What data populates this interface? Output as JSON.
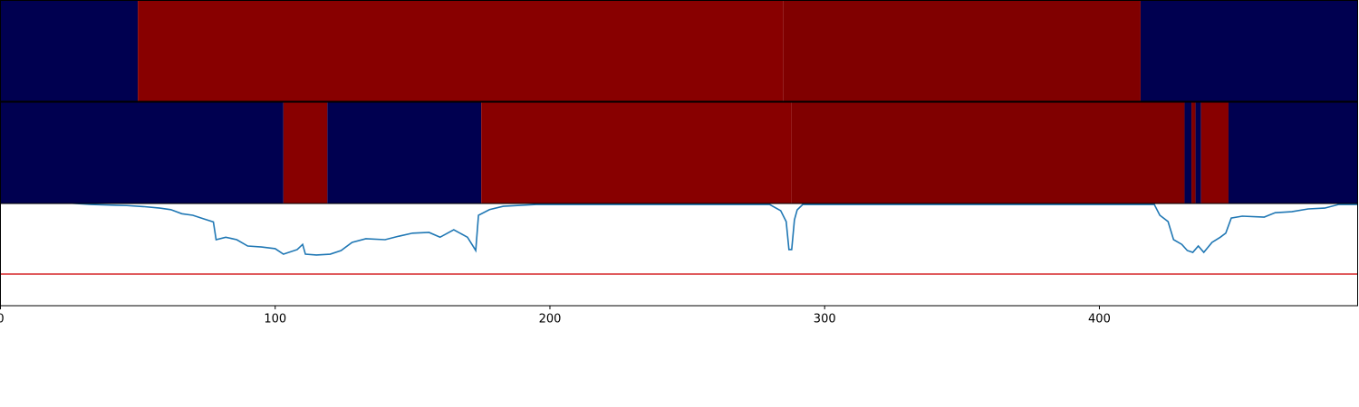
{
  "chart_data": [
    {
      "type": "heatmap",
      "xlim": [
        0,
        494
      ],
      "segments": [
        {
          "start": 0,
          "end": 50,
          "color": "#000050"
        },
        {
          "start": 50,
          "end": 285,
          "color": "#880000"
        },
        {
          "start": 285,
          "end": 415,
          "color": "#800000"
        },
        {
          "start": 415,
          "end": 494,
          "color": "#000050"
        }
      ]
    },
    {
      "type": "heatmap",
      "xlim": [
        0,
        494
      ],
      "segments": [
        {
          "start": 0,
          "end": 103,
          "color": "#000050"
        },
        {
          "start": 103,
          "end": 119,
          "color": "#880000"
        },
        {
          "start": 119,
          "end": 175,
          "color": "#000050"
        },
        {
          "start": 175,
          "end": 288,
          "color": "#880000"
        },
        {
          "start": 288,
          "end": 431,
          "color": "#800000"
        },
        {
          "start": 431,
          "end": 433.5,
          "color": "#000050"
        },
        {
          "start": 433.5,
          "end": 435,
          "color": "#800000"
        },
        {
          "start": 435,
          "end": 437,
          "color": "#000050"
        },
        {
          "start": 437,
          "end": 447,
          "color": "#880000"
        },
        {
          "start": 447,
          "end": 494,
          "color": "#000050"
        }
      ]
    },
    {
      "type": "line",
      "xlim": [
        0,
        494
      ],
      "ylim": [
        0,
        1
      ],
      "color": "#1f77b4",
      "xticks": [
        0,
        100,
        200,
        300,
        400
      ],
      "hline": {
        "value": 0.31,
        "color": "#d62728"
      },
      "x": [
        0,
        33,
        46,
        52,
        58,
        62,
        66,
        70,
        74,
        77.5,
        78.5,
        82,
        86,
        90,
        95,
        100,
        103,
        108,
        110,
        111,
        115,
        120,
        124,
        128,
        133,
        140,
        145,
        150,
        156,
        160,
        165,
        170,
        173,
        174,
        178,
        183,
        195,
        280,
        284,
        286,
        287,
        288,
        289,
        290,
        292,
        420,
        422,
        425,
        427,
        430,
        432,
        434,
        436,
        438,
        441,
        444,
        446,
        448,
        452,
        460,
        464,
        470,
        476,
        482,
        487,
        494
      ],
      "values": [
        1.05,
        0.99,
        0.98,
        0.97,
        0.955,
        0.94,
        0.9,
        0.885,
        0.85,
        0.82,
        0.646,
        0.67,
        0.646,
        0.584,
        0.575,
        0.558,
        0.504,
        0.549,
        0.6,
        0.504,
        0.496,
        0.504,
        0.54,
        0.62,
        0.655,
        0.646,
        0.68,
        0.71,
        0.717,
        0.67,
        0.743,
        0.67,
        0.54,
        0.885,
        0.94,
        0.973,
        0.99,
        0.99,
        0.93,
        0.823,
        0.549,
        0.549,
        0.84,
        0.938,
        0.99,
        0.99,
        0.885,
        0.823,
        0.646,
        0.6,
        0.54,
        0.522,
        0.584,
        0.522,
        0.62,
        0.67,
        0.71,
        0.858,
        0.876,
        0.867,
        0.91,
        0.92,
        0.947,
        0.955,
        0.99,
        0.99
      ]
    }
  ]
}
